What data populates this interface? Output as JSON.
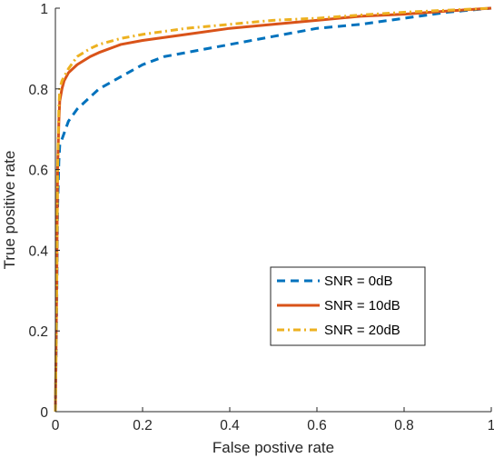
{
  "chart_data": {
    "type": "line",
    "title": "",
    "xlabel": "False postive rate",
    "ylabel": "True positive rate",
    "xlim": [
      0,
      1
    ],
    "ylim": [
      0,
      1
    ],
    "xticks": [
      0,
      0.2,
      0.4,
      0.6,
      0.8,
      1
    ],
    "yticks": [
      0,
      0.2,
      0.4,
      0.6,
      0.8,
      1
    ],
    "xtick_labels": [
      "0",
      "0.2",
      "0.4",
      "0.6",
      "0.8",
      "1"
    ],
    "ytick_labels": [
      "0",
      "0.2",
      "0.4",
      "0.6",
      "0.8",
      "1"
    ],
    "grid": false,
    "legend_position": "lower-right",
    "series": [
      {
        "name": "SNR = 0dB",
        "color": "#0072BD",
        "line_style": "dashed",
        "points": [
          [
            0,
            0
          ],
          [
            0.003,
            0.25
          ],
          [
            0.005,
            0.5
          ],
          [
            0.008,
            0.62
          ],
          [
            0.01,
            0.66
          ],
          [
            0.02,
            0.69
          ],
          [
            0.03,
            0.72
          ],
          [
            0.05,
            0.75
          ],
          [
            0.08,
            0.78
          ],
          [
            0.1,
            0.8
          ],
          [
            0.15,
            0.83
          ],
          [
            0.2,
            0.86
          ],
          [
            0.25,
            0.88
          ],
          [
            0.3,
            0.89
          ],
          [
            0.4,
            0.91
          ],
          [
            0.5,
            0.93
          ],
          [
            0.6,
            0.95
          ],
          [
            0.7,
            0.96
          ],
          [
            0.8,
            0.975
          ],
          [
            0.9,
            0.99
          ],
          [
            1,
            1
          ]
        ]
      },
      {
        "name": "SNR = 10dB",
        "color": "#D95319",
        "line_style": "solid",
        "points": [
          [
            0,
            0
          ],
          [
            0.003,
            0.3
          ],
          [
            0.005,
            0.6
          ],
          [
            0.008,
            0.72
          ],
          [
            0.01,
            0.77
          ],
          [
            0.015,
            0.8
          ],
          [
            0.02,
            0.82
          ],
          [
            0.03,
            0.84
          ],
          [
            0.05,
            0.86
          ],
          [
            0.08,
            0.88
          ],
          [
            0.1,
            0.89
          ],
          [
            0.15,
            0.91
          ],
          [
            0.2,
            0.92
          ],
          [
            0.3,
            0.935
          ],
          [
            0.4,
            0.95
          ],
          [
            0.5,
            0.96
          ],
          [
            0.6,
            0.97
          ],
          [
            0.7,
            0.98
          ],
          [
            0.8,
            0.985
          ],
          [
            0.9,
            0.993
          ],
          [
            1,
            1
          ]
        ]
      },
      {
        "name": "SNR = 20dB",
        "color": "#EDB120",
        "line_style": "dash-dot",
        "points": [
          [
            0,
            0
          ],
          [
            0.003,
            0.3
          ],
          [
            0.005,
            0.6
          ],
          [
            0.008,
            0.75
          ],
          [
            0.01,
            0.8
          ],
          [
            0.015,
            0.82
          ],
          [
            0.02,
            0.83
          ],
          [
            0.03,
            0.85
          ],
          [
            0.05,
            0.88
          ],
          [
            0.08,
            0.9
          ],
          [
            0.1,
            0.91
          ],
          [
            0.15,
            0.925
          ],
          [
            0.2,
            0.935
          ],
          [
            0.3,
            0.95
          ],
          [
            0.4,
            0.96
          ],
          [
            0.5,
            0.97
          ],
          [
            0.6,
            0.975
          ],
          [
            0.7,
            0.983
          ],
          [
            0.8,
            0.99
          ],
          [
            0.9,
            0.995
          ],
          [
            1,
            1
          ]
        ]
      }
    ]
  }
}
